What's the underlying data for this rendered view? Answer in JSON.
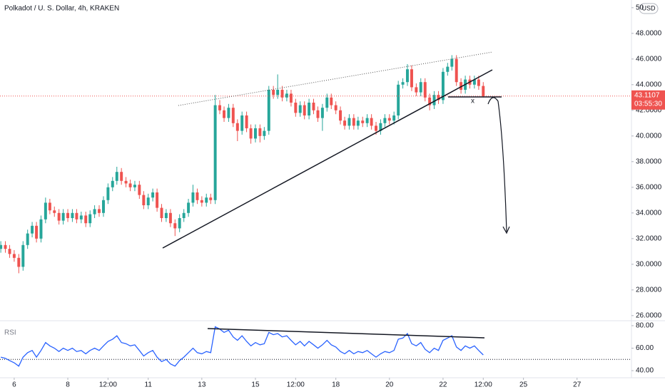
{
  "chart_data": {
    "type": "candlestick",
    "title": "Polkadot / U. S. Dollar, 4h, KRAKEN",
    "currency": "USD",
    "up_color": "#26a69a",
    "down_color": "#ef5350",
    "grid": false,
    "xlim": [
      5.47,
      29.03
    ],
    "xticks": [
      6,
      8,
      {
        "value": 9.5,
        "label": "12:00"
      },
      11,
      13,
      15,
      {
        "value": 16.5,
        "label": "12:00"
      },
      18,
      20,
      22,
      {
        "value": 23.5,
        "label": "12:00"
      },
      25,
      27
    ],
    "ylim": [
      25.6,
      50.6
    ],
    "yticks": [
      {
        "value": 26,
        "label": "26.0000"
      },
      {
        "value": 28,
        "label": "28.0000"
      },
      {
        "value": 30,
        "label": "30.0000"
      },
      {
        "value": 32,
        "label": "32.0000"
      },
      {
        "value": 34,
        "label": "34.0000"
      },
      {
        "value": 36,
        "label": "36.0000"
      },
      {
        "value": 38,
        "label": "38.0000"
      },
      {
        "value": 40,
        "label": "40.0000"
      },
      {
        "value": 42,
        "label": "42.0000"
      },
      {
        "value": 44,
        "label": "44.0000"
      },
      {
        "value": 46,
        "label": "46.0000"
      },
      {
        "value": 48,
        "label": "48.0000"
      },
      50
    ],
    "last_price": 43.1107,
    "countdown": "03:55:30",
    "annotation": "x",
    "x": [
      5.5,
      5.67,
      5.83,
      6.0,
      6.17,
      6.33,
      6.5,
      6.67,
      6.83,
      7.0,
      7.17,
      7.33,
      7.5,
      7.67,
      7.83,
      8.0,
      8.17,
      8.33,
      8.5,
      8.67,
      8.83,
      9.0,
      9.17,
      9.33,
      9.5,
      9.67,
      9.83,
      10.0,
      10.17,
      10.33,
      10.5,
      10.67,
      10.83,
      11.0,
      11.17,
      11.33,
      11.5,
      11.67,
      11.83,
      12.0,
      12.17,
      12.33,
      12.5,
      12.67,
      12.83,
      13.0,
      13.17,
      13.33,
      13.5,
      13.67,
      13.83,
      14.0,
      14.17,
      14.33,
      14.5,
      14.67,
      14.83,
      15.0,
      15.17,
      15.33,
      15.5,
      15.67,
      15.83,
      16.0,
      16.17,
      16.33,
      16.5,
      16.67,
      16.83,
      17.0,
      17.17,
      17.33,
      17.5,
      17.67,
      17.83,
      18.0,
      18.17,
      18.33,
      18.5,
      18.67,
      18.83,
      19.0,
      19.17,
      19.33,
      19.5,
      19.67,
      19.83,
      20.0,
      20.17,
      20.33,
      20.5,
      20.67,
      20.83,
      21.0,
      21.17,
      21.33,
      21.5,
      21.67,
      21.83,
      22.0,
      22.17,
      22.33,
      22.5,
      22.67,
      22.83,
      23.0,
      23.17,
      23.33,
      23.5
    ],
    "candles": [
      [
        31.2,
        31.8,
        30.9,
        31.5
      ],
      [
        31.5,
        31.8,
        30.9,
        31.2
      ],
      [
        31.2,
        31.5,
        30.5,
        30.8
      ],
      [
        30.8,
        31.1,
        30.2,
        30.5
      ],
      [
        30.5,
        30.8,
        29.3,
        29.8
      ],
      [
        29.8,
        31.8,
        29.5,
        31.5
      ],
      [
        31.5,
        32.7,
        31.2,
        32.4
      ],
      [
        32.4,
        33.3,
        32.1,
        33.0
      ],
      [
        33.0,
        33.3,
        31.7,
        32.0
      ],
      [
        32.0,
        33.8,
        31.7,
        33.5
      ],
      [
        33.5,
        35.2,
        33.2,
        34.8
      ],
      [
        34.8,
        35.1,
        33.9,
        34.2
      ],
      [
        34.2,
        34.5,
        33.7,
        34.0
      ],
      [
        34.0,
        34.3,
        33.1,
        33.4
      ],
      [
        33.4,
        34.3,
        33.1,
        34.0
      ],
      [
        34.0,
        34.3,
        33.3,
        33.6
      ],
      [
        33.6,
        34.3,
        33.3,
        34.0
      ],
      [
        34.0,
        34.3,
        33.2,
        33.5
      ],
      [
        33.5,
        34.1,
        33.2,
        33.8
      ],
      [
        33.8,
        34.1,
        32.9,
        33.2
      ],
      [
        33.2,
        34.2,
        32.9,
        33.9
      ],
      [
        33.9,
        34.6,
        33.6,
        34.3
      ],
      [
        34.3,
        34.6,
        33.7,
        34.0
      ],
      [
        34.0,
        35.3,
        33.7,
        35.0
      ],
      [
        35.0,
        36.3,
        34.7,
        36.0
      ],
      [
        36.0,
        36.8,
        35.7,
        36.5
      ],
      [
        36.5,
        37.6,
        36.2,
        37.2
      ],
      [
        37.2,
        37.5,
        36.2,
        36.5
      ],
      [
        36.5,
        36.8,
        36.0,
        36.3
      ],
      [
        36.3,
        36.6,
        35.7,
        36.0
      ],
      [
        36.0,
        36.5,
        35.7,
        36.2
      ],
      [
        36.2,
        36.5,
        35.1,
        35.4
      ],
      [
        35.4,
        35.7,
        34.3,
        34.6
      ],
      [
        34.6,
        35.5,
        34.3,
        35.2
      ],
      [
        35.2,
        35.9,
        34.9,
        35.6
      ],
      [
        35.6,
        35.9,
        34.1,
        34.4
      ],
      [
        34.4,
        34.7,
        33.3,
        33.6
      ],
      [
        33.6,
        34.3,
        33.3,
        34.0
      ],
      [
        34.0,
        34.3,
        32.9,
        33.2
      ],
      [
        33.2,
        33.5,
        32.2,
        32.8
      ],
      [
        32.8,
        33.9,
        32.5,
        33.6
      ],
      [
        33.6,
        34.3,
        33.3,
        34.0
      ],
      [
        34.0,
        35.1,
        33.7,
        34.8
      ],
      [
        34.8,
        36.2,
        34.5,
        35.6
      ],
      [
        35.6,
        35.9,
        34.7,
        35.0
      ],
      [
        35.0,
        35.3,
        34.5,
        34.8
      ],
      [
        34.8,
        35.5,
        34.5,
        35.2
      ],
      [
        35.2,
        35.5,
        34.7,
        35.0
      ],
      [
        35.0,
        43.2,
        34.7,
        42.4
      ],
      [
        42.4,
        42.8,
        41.7,
        42.0
      ],
      [
        42.0,
        42.3,
        41.1,
        41.4
      ],
      [
        41.4,
        42.5,
        41.1,
        42.2
      ],
      [
        42.2,
        42.5,
        40.7,
        41.0
      ],
      [
        41.0,
        41.3,
        39.6,
        40.4
      ],
      [
        40.4,
        41.9,
        40.1,
        41.6
      ],
      [
        41.6,
        41.9,
        40.3,
        40.6
      ],
      [
        40.6,
        40.9,
        39.4,
        39.8
      ],
      [
        39.8,
        40.9,
        39.5,
        40.6
      ],
      [
        40.6,
        40.9,
        39.5,
        40.0
      ],
      [
        40.0,
        40.7,
        39.7,
        40.4
      ],
      [
        40.4,
        43.9,
        40.1,
        43.6
      ],
      [
        43.6,
        43.9,
        42.9,
        43.2
      ],
      [
        43.2,
        44.8,
        42.9,
        43.6
      ],
      [
        43.6,
        43.9,
        42.7,
        43.0
      ],
      [
        43.0,
        43.6,
        42.7,
        43.3
      ],
      [
        43.3,
        43.6,
        42.3,
        42.6
      ],
      [
        42.6,
        42.9,
        41.5,
        41.8
      ],
      [
        41.8,
        42.7,
        41.5,
        42.4
      ],
      [
        42.4,
        42.7,
        41.3,
        41.6
      ],
      [
        41.6,
        42.9,
        41.3,
        42.6
      ],
      [
        42.6,
        42.9,
        41.7,
        42.0
      ],
      [
        42.0,
        42.3,
        41.1,
        41.4
      ],
      [
        41.4,
        42.5,
        40.4,
        42.2
      ],
      [
        42.2,
        43.3,
        41.9,
        43.0
      ],
      [
        43.0,
        43.3,
        42.1,
        42.4
      ],
      [
        42.4,
        42.7,
        41.7,
        42.0
      ],
      [
        42.0,
        42.3,
        40.9,
        41.2
      ],
      [
        41.2,
        41.5,
        40.5,
        40.8
      ],
      [
        40.8,
        41.7,
        40.5,
        41.4
      ],
      [
        41.4,
        41.7,
        40.5,
        40.8
      ],
      [
        40.8,
        41.5,
        40.5,
        41.2
      ],
      [
        41.2,
        41.5,
        40.7,
        41.0
      ],
      [
        41.0,
        41.7,
        40.7,
        41.4
      ],
      [
        41.4,
        41.7,
        40.5,
        40.8
      ],
      [
        40.8,
        41.1,
        40.1,
        40.4
      ],
      [
        40.4,
        41.3,
        40.1,
        41.0
      ],
      [
        41.0,
        41.7,
        40.7,
        41.4
      ],
      [
        41.4,
        41.7,
        40.9,
        41.2
      ],
      [
        41.2,
        41.9,
        40.9,
        41.6
      ],
      [
        41.6,
        44.3,
        41.3,
        44.0
      ],
      [
        44.0,
        44.5,
        43.7,
        44.2
      ],
      [
        44.2,
        45.6,
        43.9,
        45.2
      ],
      [
        45.2,
        45.5,
        43.5,
        43.8
      ],
      [
        43.8,
        44.1,
        43.1,
        43.4
      ],
      [
        43.4,
        44.5,
        43.1,
        44.2
      ],
      [
        44.2,
        44.5,
        42.7,
        43.0
      ],
      [
        43.0,
        43.3,
        42.0,
        42.4
      ],
      [
        42.4,
        43.5,
        42.1,
        43.2
      ],
      [
        43.2,
        43.5,
        42.5,
        42.8
      ],
      [
        42.8,
        45.3,
        42.5,
        45.0
      ],
      [
        45.0,
        45.7,
        44.7,
        45.4
      ],
      [
        45.4,
        46.3,
        45.1,
        46.0
      ],
      [
        46.0,
        46.3,
        43.9,
        44.2
      ],
      [
        44.2,
        44.5,
        43.3,
        43.6
      ],
      [
        43.6,
        44.7,
        43.3,
        44.4
      ],
      [
        44.4,
        44.7,
        43.7,
        44.0
      ],
      [
        44.0,
        44.7,
        43.7,
        44.4
      ],
      [
        44.4,
        44.7,
        43.6,
        43.9
      ],
      [
        43.9,
        44.2,
        43.0,
        43.1
      ]
    ],
    "rsi": {
      "name": "RSI",
      "color": "#2962ff",
      "level": 50,
      "ylim": [
        33.7,
        84.4
      ],
      "yticks": [
        {
          "value": 40,
          "label": "40.00"
        },
        {
          "value": 60,
          "label": "60.00"
        },
        {
          "value": 80,
          "label": "80.00"
        }
      ],
      "values": [
        52,
        51,
        49,
        47,
        44,
        52,
        56,
        58,
        52,
        58,
        65,
        62,
        60,
        57,
        60,
        58,
        60,
        57,
        58,
        55,
        58,
        60,
        58,
        62,
        66,
        68,
        71,
        65,
        64,
        62,
        63,
        58,
        53,
        56,
        58,
        52,
        48,
        50,
        46,
        44,
        49,
        52,
        56,
        60,
        56,
        55,
        57,
        56,
        79,
        77,
        74,
        76,
        70,
        67,
        71,
        66,
        62,
        65,
        63,
        64,
        74,
        72,
        73,
        70,
        71,
        67,
        63,
        66,
        62,
        66,
        63,
        60,
        63,
        67,
        63,
        61,
        57,
        55,
        58,
        55,
        57,
        56,
        58,
        55,
        52,
        55,
        57,
        56,
        58,
        68,
        69,
        73,
        64,
        62,
        65,
        59,
        56,
        60,
        58,
        67,
        69,
        71,
        61,
        58,
        62,
        60,
        62,
        58,
        54
      ]
    }
  }
}
